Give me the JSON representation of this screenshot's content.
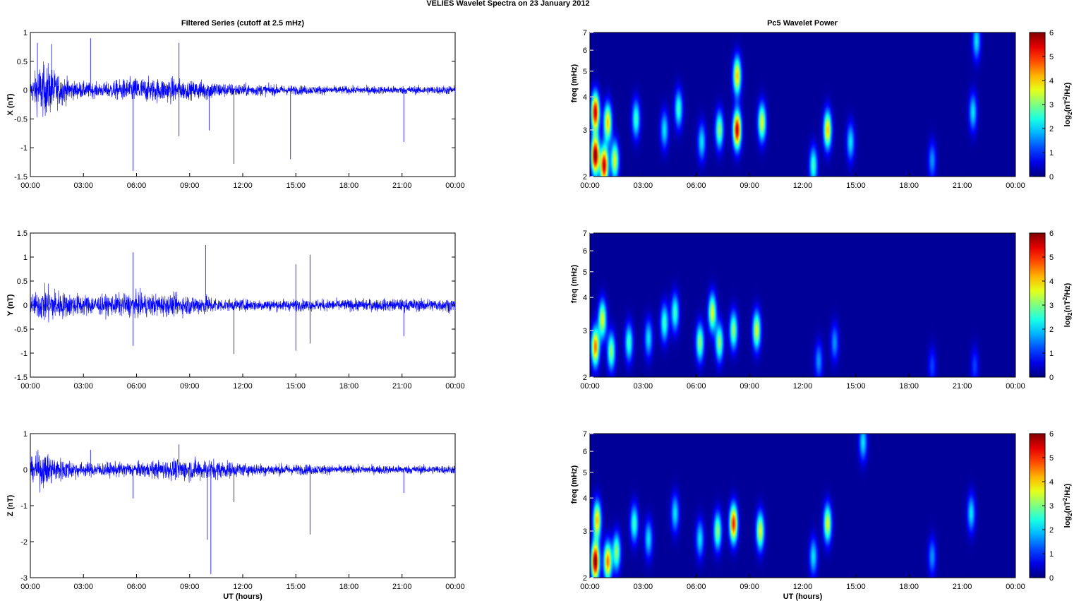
{
  "figure": {
    "title": "VELIES Wavelet Spectra on 23 January   2012"
  },
  "left_title": "Filtered Series (cutoff at 2.5 mHz)",
  "right_title": "Pc5 Wavelet Power",
  "x_label": "UT (hours)",
  "freq_label": "freq (mHz)",
  "colorbar_label": "log2(nT2/Hz)",
  "chart_data": [
    {
      "type": "line",
      "panel": "X filtered series",
      "ylabel": "X (nT)",
      "xlabel": "",
      "xlim": [
        "00:00",
        "24:00"
      ],
      "x_ticks": [
        "00:00",
        "03:00",
        "06:00",
        "09:00",
        "12:00",
        "15:00",
        "18:00",
        "21:00",
        "00:00"
      ],
      "ylim": [
        -1.5,
        1
      ],
      "y_ticks": [
        1,
        0.5,
        0,
        -0.5,
        -1,
        -1.5
      ],
      "color": "#0000ff",
      "envelope": [
        {
          "t": 0,
          "amp": 0.15
        },
        {
          "t": 0.5,
          "amp": 0.45
        },
        {
          "t": 1,
          "amp": 0.45
        },
        {
          "t": 1.5,
          "amp": 0.3
        },
        {
          "t": 2.5,
          "amp": 0.15
        },
        {
          "t": 4,
          "amp": 0.12
        },
        {
          "t": 5,
          "amp": 0.18
        },
        {
          "t": 6,
          "amp": 0.22
        },
        {
          "t": 7,
          "amp": 0.2
        },
        {
          "t": 8,
          "amp": 0.22
        },
        {
          "t": 9,
          "amp": 0.15
        },
        {
          "t": 10,
          "amp": 0.18
        },
        {
          "t": 11,
          "amp": 0.12
        },
        {
          "t": 13,
          "amp": 0.1
        },
        {
          "t": 15,
          "amp": 0.08
        },
        {
          "t": 18,
          "amp": 0.07
        },
        {
          "t": 21,
          "amp": 0.07
        },
        {
          "t": 24,
          "amp": 0.08
        }
      ],
      "spikes": [
        {
          "t": 0.4,
          "v": 0.82
        },
        {
          "t": 1.2,
          "v": 0.8
        },
        {
          "t": 3.4,
          "v": 0.9
        },
        {
          "t": 5.8,
          "v": -1.4
        },
        {
          "t": 8.4,
          "v": 0.82
        },
        {
          "t": 8.4,
          "v": -0.8
        },
        {
          "t": 10.1,
          "v": -0.7
        },
        {
          "t": 11.5,
          "v": -1.28
        },
        {
          "t": 14.7,
          "v": -1.2
        },
        {
          "t": 21.1,
          "v": -0.9
        }
      ]
    },
    {
      "type": "line",
      "panel": "Y filtered series",
      "ylabel": "Y (nT)",
      "xlabel": "",
      "xlim": [
        "00:00",
        "24:00"
      ],
      "x_ticks": [
        "00:00",
        "03:00",
        "06:00",
        "09:00",
        "12:00",
        "15:00",
        "18:00",
        "21:00",
        "00:00"
      ],
      "ylim": [
        -1.5,
        1.5
      ],
      "y_ticks": [
        1.5,
        1,
        0.5,
        0,
        -0.5,
        -1,
        -1.5
      ],
      "color": "#0000ff",
      "envelope": [
        {
          "t": 0,
          "amp": 0.2
        },
        {
          "t": 1,
          "amp": 0.4
        },
        {
          "t": 2,
          "amp": 0.25
        },
        {
          "t": 4,
          "amp": 0.2
        },
        {
          "t": 6,
          "amp": 0.25
        },
        {
          "t": 8,
          "amp": 0.22
        },
        {
          "t": 10,
          "amp": 0.2
        },
        {
          "t": 11,
          "amp": 0.12
        },
        {
          "t": 14,
          "amp": 0.12
        },
        {
          "t": 18,
          "amp": 0.12
        },
        {
          "t": 24,
          "amp": 0.14
        }
      ],
      "spikes": [
        {
          "t": 5.8,
          "v": 1.1
        },
        {
          "t": 5.8,
          "v": -0.85
        },
        {
          "t": 9.9,
          "v": 1.25
        },
        {
          "t": 11.5,
          "v": -1.02
        },
        {
          "t": 15,
          "v": 0.85
        },
        {
          "t": 15,
          "v": -0.95
        },
        {
          "t": 15.8,
          "v": 1.05
        },
        {
          "t": 15.8,
          "v": -0.8
        },
        {
          "t": 21.1,
          "v": -0.65
        }
      ]
    },
    {
      "type": "line",
      "panel": "Z filtered series",
      "ylabel": "Z (nT)",
      "xlabel": "UT (hours)",
      "xlim": [
        "00:00",
        "24:00"
      ],
      "x_ticks": [
        "00:00",
        "03:00",
        "06:00",
        "09:00",
        "12:00",
        "15:00",
        "18:00",
        "21:00",
        "00:00"
      ],
      "ylim": [
        -3,
        1
      ],
      "y_ticks": [
        1,
        0,
        -1,
        -2,
        -3
      ],
      "color": "#0000ff",
      "envelope": [
        {
          "t": 0,
          "amp": 0.25
        },
        {
          "t": 0.5,
          "amp": 0.5
        },
        {
          "t": 1.5,
          "amp": 0.35
        },
        {
          "t": 3,
          "amp": 0.2
        },
        {
          "t": 6,
          "amp": 0.2
        },
        {
          "t": 8.5,
          "amp": 0.3
        },
        {
          "t": 10,
          "amp": 0.3
        },
        {
          "t": 12,
          "amp": 0.18
        },
        {
          "t": 15,
          "amp": 0.15
        },
        {
          "t": 18,
          "amp": 0.12
        },
        {
          "t": 24,
          "amp": 0.12
        }
      ],
      "spikes": [
        {
          "t": 3.4,
          "v": 0.55
        },
        {
          "t": 5.8,
          "v": -0.8
        },
        {
          "t": 8.4,
          "v": 0.7
        },
        {
          "t": 10,
          "v": -1.95
        },
        {
          "t": 10.2,
          "v": -2.9
        },
        {
          "t": 11.5,
          "v": -0.9
        },
        {
          "t": 15.8,
          "v": -1.8
        },
        {
          "t": 21.1,
          "v": -0.65
        }
      ]
    },
    {
      "type": "heatmap",
      "panel": "X Pc5 wavelet power",
      "ylabel": "freq (mHz)",
      "xlabel": "",
      "xlim": [
        "00:00",
        "24:00"
      ],
      "x_ticks": [
        "00:00",
        "03:00",
        "06:00",
        "09:00",
        "12:00",
        "15:00",
        "18:00",
        "21:00",
        "00:00"
      ],
      "ylim": [
        2,
        7
      ],
      "y_ticks": [
        2,
        3,
        4,
        5,
        6,
        7
      ],
      "yscale": "log",
      "colorbar": {
        "label": "log2(nT2/Hz)",
        "range": [
          0,
          6
        ],
        "ticks": [
          0,
          1,
          2,
          3,
          4,
          5,
          6
        ],
        "colormap": "jet"
      },
      "blobs": [
        {
          "t": 0.3,
          "f": 2.4,
          "power": 6.0
        },
        {
          "t": 0.3,
          "f": 3.5,
          "power": 5.5
        },
        {
          "t": 0.8,
          "f": 2.2,
          "power": 5.5
        },
        {
          "t": 1.0,
          "f": 3.2,
          "power": 4.0
        },
        {
          "t": 1.4,
          "f": 2.3,
          "power": 3.5
        },
        {
          "t": 2.6,
          "f": 3.3,
          "power": 2.5
        },
        {
          "t": 4.2,
          "f": 3.0,
          "power": 2.0
        },
        {
          "t": 5.0,
          "f": 3.6,
          "power": 2.5
        },
        {
          "t": 6.3,
          "f": 2.7,
          "power": 2.0
        },
        {
          "t": 7.3,
          "f": 3.0,
          "power": 3.0
        },
        {
          "t": 8.3,
          "f": 3.0,
          "power": 5.5
        },
        {
          "t": 8.3,
          "f": 4.8,
          "power": 4.0
        },
        {
          "t": 9.7,
          "f": 3.2,
          "power": 3.5
        },
        {
          "t": 12.6,
          "f": 2.2,
          "power": 2.5
        },
        {
          "t": 13.4,
          "f": 3.0,
          "power": 4.0
        },
        {
          "t": 14.7,
          "f": 2.7,
          "power": 2.0
        },
        {
          "t": 19.3,
          "f": 2.3,
          "power": 1.5
        },
        {
          "t": 21.6,
          "f": 3.5,
          "power": 2.0
        },
        {
          "t": 21.8,
          "f": 6.5,
          "power": 2.0
        }
      ]
    },
    {
      "type": "heatmap",
      "panel": "Y Pc5 wavelet power",
      "ylabel": "freq (mHz)",
      "xlabel": "",
      "xlim": [
        "00:00",
        "24:00"
      ],
      "x_ticks": [
        "00:00",
        "03:00",
        "06:00",
        "09:00",
        "12:00",
        "15:00",
        "18:00",
        "21:00",
        "00:00"
      ],
      "ylim": [
        2,
        7
      ],
      "y_ticks": [
        2,
        3,
        4,
        5,
        6,
        7
      ],
      "yscale": "log",
      "colorbar": {
        "label": "log2(nT2/Hz)",
        "range": [
          0,
          6
        ],
        "ticks": [
          0,
          1,
          2,
          3,
          4,
          5,
          6
        ],
        "colormap": "jet"
      },
      "blobs": [
        {
          "t": 0.3,
          "f": 2.6,
          "power": 4.5
        },
        {
          "t": 0.7,
          "f": 3.3,
          "power": 3.5
        },
        {
          "t": 1.2,
          "f": 2.5,
          "power": 3.0
        },
        {
          "t": 2.2,
          "f": 2.7,
          "power": 2.5
        },
        {
          "t": 3.3,
          "f": 2.8,
          "power": 2.0
        },
        {
          "t": 4.2,
          "f": 3.2,
          "power": 2.5
        },
        {
          "t": 4.8,
          "f": 3.5,
          "power": 2.5
        },
        {
          "t": 6.2,
          "f": 2.7,
          "power": 3.0
        },
        {
          "t": 6.9,
          "f": 3.5,
          "power": 3.5
        },
        {
          "t": 7.3,
          "f": 2.7,
          "power": 3.0
        },
        {
          "t": 8.1,
          "f": 3.0,
          "power": 3.0
        },
        {
          "t": 9.4,
          "f": 3.0,
          "power": 3.5
        },
        {
          "t": 12.9,
          "f": 2.3,
          "power": 1.5
        },
        {
          "t": 13.8,
          "f": 2.7,
          "power": 1.5
        },
        {
          "t": 19.3,
          "f": 2.2,
          "power": 1.0
        },
        {
          "t": 21.7,
          "f": 2.2,
          "power": 1.0
        }
      ]
    },
    {
      "type": "heatmap",
      "panel": "Z Pc5 wavelet power",
      "ylabel": "freq (mHz)",
      "xlabel": "UT (hours)",
      "xlim": [
        "00:00",
        "24:00"
      ],
      "x_ticks": [
        "00:00",
        "03:00",
        "06:00",
        "09:00",
        "12:00",
        "15:00",
        "18:00",
        "21:00",
        "00:00"
      ],
      "ylim": [
        2,
        7
      ],
      "y_ticks": [
        2,
        3,
        4,
        5,
        6,
        7
      ],
      "yscale": "log",
      "colorbar": {
        "label": "log2(nT2/Hz)",
        "range": [
          0,
          6
        ],
        "ticks": [
          0,
          1,
          2,
          3,
          4,
          5,
          6
        ],
        "colormap": "jet"
      },
      "blobs": [
        {
          "t": 0.3,
          "f": 2.3,
          "power": 6.0
        },
        {
          "t": 0.4,
          "f": 3.3,
          "power": 4.0
        },
        {
          "t": 1.0,
          "f": 2.3,
          "power": 4.5
        },
        {
          "t": 1.5,
          "f": 2.5,
          "power": 3.0
        },
        {
          "t": 2.5,
          "f": 3.2,
          "power": 2.5
        },
        {
          "t": 3.3,
          "f": 2.8,
          "power": 2.0
        },
        {
          "t": 4.8,
          "f": 3.5,
          "power": 2.0
        },
        {
          "t": 6.2,
          "f": 2.8,
          "power": 2.0
        },
        {
          "t": 7.2,
          "f": 3.0,
          "power": 3.0
        },
        {
          "t": 8.1,
          "f": 3.2,
          "power": 5.0
        },
        {
          "t": 9.6,
          "f": 3.0,
          "power": 3.5
        },
        {
          "t": 12.6,
          "f": 2.4,
          "power": 2.0
        },
        {
          "t": 13.4,
          "f": 3.2,
          "power": 3.5
        },
        {
          "t": 15.4,
          "f": 6.5,
          "power": 2.0
        },
        {
          "t": 19.3,
          "f": 2.4,
          "power": 1.5
        },
        {
          "t": 21.5,
          "f": 3.5,
          "power": 2.0
        }
      ]
    }
  ]
}
